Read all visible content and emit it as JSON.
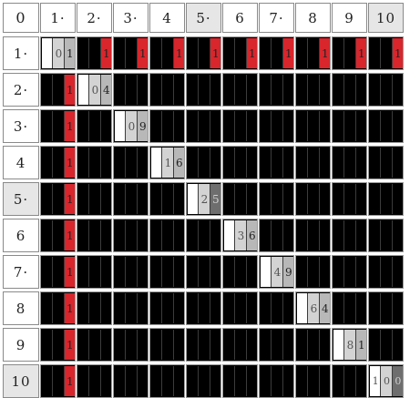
{
  "corner_label": "0",
  "column_labels": [
    "1·",
    "2·",
    "3·",
    "4",
    "5·",
    "6",
    "7·",
    "8",
    "9",
    "10"
  ],
  "row_labels": [
    "1·",
    "2·",
    "3·",
    "4",
    "5·",
    "6",
    "7·",
    "8",
    "9",
    "10"
  ],
  "highlighted_headers": [
    "5·",
    "10"
  ],
  "colors": {
    "black": "#000000",
    "red": "#d8262c",
    "white": "#ffffff",
    "light_gray": "#d3d3d3",
    "mid_gray": "#b8b8b8",
    "dark_gray": "#6e6e6e",
    "grid_line": "#8a8a8a"
  },
  "cell_encoding": "each product cell shows the product as coloured vertical strips (black = 1·, red = 1, white/grays = digits of squares); digits printed where shown",
  "cells": [
    {
      "row": 1,
      "col": 1,
      "text": [
        "0",
        "1"
      ],
      "strips": [
        "white",
        "light_gray",
        "mid_gray"
      ]
    },
    {
      "row": 1,
      "col": 2,
      "text": [
        "",
        "1"
      ],
      "strips": [
        "black",
        "black",
        "red"
      ]
    },
    {
      "row": 1,
      "col": 3,
      "text": [
        "",
        "1"
      ],
      "strips": [
        "black",
        "black",
        "red"
      ]
    },
    {
      "row": 1,
      "col": 4,
      "text": [
        "",
        "1"
      ],
      "strips": [
        "black",
        "black",
        "red"
      ]
    },
    {
      "row": 1,
      "col": 5,
      "text": [
        "",
        "1"
      ],
      "strips": [
        "black",
        "black",
        "red"
      ]
    },
    {
      "row": 1,
      "col": 6,
      "text": [
        "",
        "1"
      ],
      "strips": [
        "black",
        "black",
        "red"
      ]
    },
    {
      "row": 1,
      "col": 7,
      "text": [
        "",
        "1"
      ],
      "strips": [
        "black",
        "black",
        "red"
      ]
    },
    {
      "row": 1,
      "col": 8,
      "text": [
        "",
        "1"
      ],
      "strips": [
        "black",
        "black",
        "red"
      ]
    },
    {
      "row": 1,
      "col": 9,
      "text": [
        "",
        "1"
      ],
      "strips": [
        "black",
        "black",
        "red"
      ]
    },
    {
      "row": 1,
      "col": 10,
      "text": [
        "",
        "1"
      ],
      "strips": [
        "black",
        "black",
        "red"
      ]
    },
    {
      "row": 2,
      "col": 1,
      "text": [
        "",
        "1"
      ],
      "strips": [
        "black",
        "black",
        "red"
      ]
    },
    {
      "row": 2,
      "col": 2,
      "text": [
        "0",
        "4"
      ],
      "strips": [
        "white",
        "light_gray",
        "mid_gray"
      ]
    },
    {
      "row": 3,
      "col": 1,
      "text": [
        "",
        "1"
      ],
      "strips": [
        "black",
        "black",
        "red"
      ]
    },
    {
      "row": 3,
      "col": 3,
      "text": [
        "0",
        "9"
      ],
      "strips": [
        "white",
        "light_gray",
        "mid_gray"
      ]
    },
    {
      "row": 4,
      "col": 1,
      "text": [
        "",
        "1"
      ],
      "strips": [
        "black",
        "black",
        "red"
      ]
    },
    {
      "row": 4,
      "col": 4,
      "text": [
        "1",
        "6"
      ],
      "strips": [
        "white",
        "light_gray",
        "mid_gray"
      ]
    },
    {
      "row": 5,
      "col": 1,
      "text": [
        "",
        "1"
      ],
      "strips": [
        "black",
        "black",
        "red"
      ]
    },
    {
      "row": 5,
      "col": 5,
      "text": [
        "2",
        "5"
      ],
      "strips": [
        "white",
        "light_gray",
        "dark_gray"
      ]
    },
    {
      "row": 6,
      "col": 1,
      "text": [
        "",
        "1"
      ],
      "strips": [
        "black",
        "black",
        "red"
      ]
    },
    {
      "row": 6,
      "col": 6,
      "text": [
        "3",
        "6"
      ],
      "strips": [
        "white",
        "light_gray",
        "mid_gray"
      ]
    },
    {
      "row": 7,
      "col": 1,
      "text": [
        "",
        "1"
      ],
      "strips": [
        "black",
        "black",
        "red"
      ]
    },
    {
      "row": 7,
      "col": 7,
      "text": [
        "4",
        "9"
      ],
      "strips": [
        "white",
        "light_gray",
        "mid_gray"
      ]
    },
    {
      "row": 8,
      "col": 1,
      "text": [
        "",
        "1"
      ],
      "strips": [
        "black",
        "black",
        "red"
      ]
    },
    {
      "row": 8,
      "col": 8,
      "text": [
        "6",
        "4"
      ],
      "strips": [
        "white",
        "light_gray",
        "mid_gray"
      ]
    },
    {
      "row": 9,
      "col": 1,
      "text": [
        "",
        "1"
      ],
      "strips": [
        "black",
        "black",
        "red"
      ]
    },
    {
      "row": 9,
      "col": 9,
      "text": [
        "8",
        "1"
      ],
      "strips": [
        "white",
        "light_gray",
        "mid_gray"
      ]
    },
    {
      "row": 10,
      "col": 1,
      "text": [
        "",
        "1"
      ],
      "strips": [
        "black",
        "black",
        "red"
      ]
    },
    {
      "row": 10,
      "col": 10,
      "text": [
        "1",
        "0",
        "0"
      ],
      "strips": [
        "white",
        "light_gray",
        "dark_gray"
      ]
    }
  ]
}
